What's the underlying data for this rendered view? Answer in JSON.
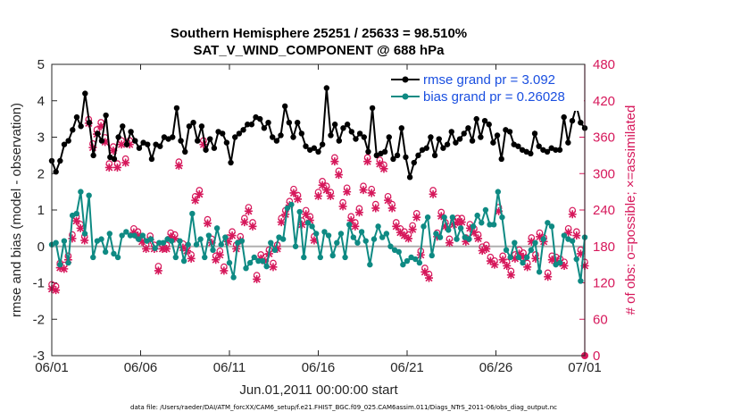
{
  "chart_data": {
    "type": "line",
    "title": "Southern Hemisphere 25251 / 25633 = 98.510%",
    "subtitle": "SAT_V_WIND_COMPONENT @ 688 hPa",
    "xlabel": "Jun.01,2011 00:00:00 start",
    "ylabel": "rmse and bias (model - observation)",
    "ylabel_right": "# of obs: o=possible; ×=assimilated",
    "footer": "data file: /Users/raeder/DAI/ATM_forcXX/CAM6_setup/f.e21.FHIST_BGC.f09_025.CAM6assim.011/Diags_NTrS_2011-06/obs_diag_output.nc",
    "xlim": [
      0,
      30
    ],
    "ylim": [
      -3,
      5
    ],
    "ylim_right": [
      0,
      480
    ],
    "grid": false,
    "legend_placement": "top-right",
    "x_ticks": [
      {
        "value": 0,
        "label": "06/01"
      },
      {
        "value": 5,
        "label": "06/06"
      },
      {
        "value": 10,
        "label": "06/11"
      },
      {
        "value": 15,
        "label": "06/16"
      },
      {
        "value": 20,
        "label": "06/21"
      },
      {
        "value": 25,
        "label": "06/26"
      },
      {
        "value": 30,
        "label": "07/01"
      }
    ],
    "y_ticks": [
      "-3",
      "-2",
      "-1",
      "0",
      "1",
      "2",
      "3",
      "4",
      "5"
    ],
    "y_ticks_right": [
      "0",
      "60",
      "120",
      "180",
      "240",
      "300",
      "360",
      "420",
      "480"
    ],
    "series": [
      {
        "name": "rmse grand pr = 3.092",
        "color": "#000000",
        "marker": "filled-circle",
        "values": [
          2.35,
          2.05,
          2.35,
          2.8,
          2.9,
          3.2,
          3.55,
          3.3,
          4.2,
          3.4,
          2.5,
          3.1,
          2.9,
          3.6,
          2.45,
          2.4,
          3.0,
          3.3,
          2.8,
          3.15,
          2.9,
          2.7,
          2.85,
          2.8,
          2.4,
          2.8,
          2.75,
          3.0,
          2.95,
          3.0,
          3.8,
          2.9,
          2.6,
          3.3,
          3.4,
          2.9,
          3.3,
          2.65,
          2.95,
          2.7,
          3.15,
          3.1,
          2.85,
          2.3,
          3.0,
          3.1,
          3.2,
          3.35,
          3.35,
          3.55,
          3.5,
          3.25,
          3.4,
          3.0,
          2.9,
          3.05,
          3.85,
          3.4,
          3.0,
          3.4,
          3.1,
          2.75,
          2.65,
          2.7,
          2.6,
          2.8,
          4.35,
          3.05,
          3.35,
          2.9,
          3.25,
          3.35,
          3.15,
          2.95,
          3.1,
          3.0,
          2.6,
          3.8,
          2.5,
          2.55,
          2.6,
          3.0,
          2.4,
          2.5,
          3.25,
          2.45,
          1.9,
          2.3,
          2.5,
          2.65,
          2.7,
          3.0,
          2.5,
          2.95,
          2.7,
          2.8,
          3.15,
          2.85,
          2.95,
          3.1,
          3.25,
          2.9,
          3.5,
          3.0,
          3.45,
          3.35,
          2.85,
          3.05,
          2.4,
          3.2,
          3.15,
          2.8,
          2.75,
          2.65,
          2.6,
          2.55,
          3.1,
          2.75,
          2.65,
          2.6,
          2.7,
          2.65,
          2.65,
          3.55,
          2.85,
          3.45,
          3.85,
          3.4,
          3.25
        ]
      },
      {
        "name": "bias grand pr = 0.26028",
        "color": "#0e8a83",
        "marker": "filled-circle",
        "values": [
          0.05,
          0.1,
          -0.5,
          0.15,
          -0.45,
          0.85,
          0.9,
          1.5,
          0.35,
          1.4,
          -0.3,
          0.15,
          0.2,
          -0.15,
          0.35,
          -0.2,
          -0.3,
          0.3,
          0.4,
          0.3,
          0.3,
          0.2,
          0.3,
          0.15,
          0.2,
          -0.05,
          0.1,
          0.1,
          0.2,
          0.15,
          -0.3,
          0.15,
          -0.4,
          0.05,
          0.9,
          0.05,
          0.2,
          -0.3,
          0.3,
          -0.1,
          0.5,
          0.05,
          0.25,
          -0.45,
          -0.85,
          0.1,
          0.15,
          -0.6,
          -0.45,
          -0.3,
          -0.4,
          -0.4,
          -0.55,
          0.1,
          -0.1,
          0.25,
          0.2,
          1.05,
          1.15,
          0.0,
          0.95,
          -0.3,
          0.65,
          0.55,
          0.35,
          -0.3,
          0.4,
          0.3,
          -0.25,
          0.1,
          0.35,
          -0.3,
          0.6,
          0.25,
          0.1,
          0.4,
          0.15,
          -0.5,
          0.2,
          0.55,
          0.25,
          0.35,
          0.0,
          -0.1,
          -0.15,
          -0.5,
          -0.4,
          -0.3,
          -0.35,
          -0.45,
          0.55,
          0.8,
          -0.25,
          0.35,
          0.25,
          0.8,
          0.45,
          0.8,
          0.2,
          0.5,
          0.25,
          0.2,
          0.55,
          0.85,
          0.65,
          1.0,
          0.6,
          0.6,
          1.5,
          0.8,
          -0.1,
          -0.3,
          0.1,
          -0.3,
          -0.45,
          -0.3,
          -0.1,
          0.1,
          -0.7,
          0.2,
          0.65,
          0.55,
          -0.5,
          -0.45,
          0.3,
          0.2,
          0.15,
          -0.35,
          -0.95,
          0.25
        ]
      },
      {
        "name": "possible",
        "color": "#d6185b",
        "marker": "open-circle",
        "axis": "right",
        "values": [
          113,
          110,
          148,
          145,
          160,
          195,
          225,
          212,
          192,
          385,
          345,
          368,
          380,
          355,
          312,
          340,
          312,
          350,
          320,
          350,
          205,
          200,
          190,
          178,
          193,
          178,
          143,
          178,
          178,
          198,
          195,
          315,
          180,
          175,
          162,
          258,
          268,
          350,
          220,
          188,
          160,
          168,
          142,
          190,
          200,
          178,
          192,
          222,
          240,
          215,
          128,
          162,
          158,
          170,
          148,
          178,
          222,
          235,
          250,
          270,
          260,
          218,
          235,
          225,
          192,
          265,
          283,
          275,
          265,
          322,
          300,
          248,
          272,
          225,
          215,
          238,
          275,
          322,
          270,
          245,
          318,
          310,
          258,
          245,
          215,
          205,
          200,
          195,
          210,
          230,
          168,
          140,
          130,
          268,
          198,
          232,
          215,
          188,
          218,
          222,
          222,
          190,
          212,
          205,
          195,
          175,
          178,
          158,
          152,
          240,
          160,
          150,
          135,
          162,
          170,
          165,
          148,
          190,
          162,
          198,
          190,
          132,
          160,
          158,
          155,
          150,
          205,
          235,
          200,
          170,
          150
        ]
      },
      {
        "name": "assimilated",
        "color": "#d6185b",
        "marker": "cross",
        "axis": "right",
        "values": [
          110,
          108,
          145,
          143,
          158,
          193,
          222,
          210,
          190,
          383,
          343,
          365,
          378,
          352,
          310,
          338,
          310,
          348,
          318,
          348,
          203,
          198,
          188,
          176,
          191,
          176,
          140,
          176,
          176,
          196,
          193,
          313,
          178,
          173,
          160,
          256,
          266,
          348,
          218,
          186,
          158,
          166,
          140,
          188,
          198,
          176,
          190,
          220,
          238,
          213,
          126,
          160,
          156,
          168,
          146,
          176,
          220,
          233,
          248,
          268,
          258,
          216,
          233,
          223,
          190,
          263,
          281,
          273,
          263,
          320,
          298,
          246,
          270,
          223,
          213,
          236,
          273,
          320,
          268,
          243,
          316,
          308,
          256,
          243,
          213,
          203,
          198,
          193,
          208,
          228,
          166,
          138,
          128,
          266,
          196,
          230,
          213,
          186,
          216,
          220,
          220,
          188,
          210,
          203,
          193,
          173,
          176,
          156,
          150,
          238,
          158,
          148,
          133,
          160,
          168,
          163,
          146,
          188,
          160,
          196,
          188,
          130,
          158,
          156,
          153,
          148,
          203,
          233,
          198,
          168,
          148
        ]
      }
    ]
  }
}
